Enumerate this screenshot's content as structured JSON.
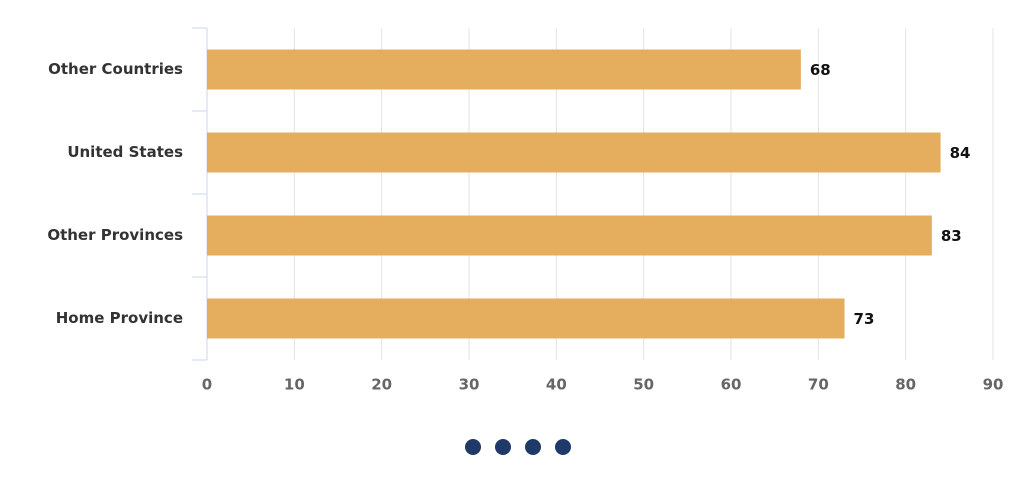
{
  "chart_data": {
    "type": "bar",
    "categories": [
      "Other Countries",
      "United States",
      "Other Provinces",
      "Home Province"
    ],
    "values": [
      68,
      84,
      83,
      73
    ],
    "color": "#e5ae5f",
    "xlim": [
      0,
      90
    ],
    "xticks": [
      0,
      10,
      20,
      30,
      40,
      50,
      60,
      70,
      80,
      90
    ],
    "grid": true
  }
}
